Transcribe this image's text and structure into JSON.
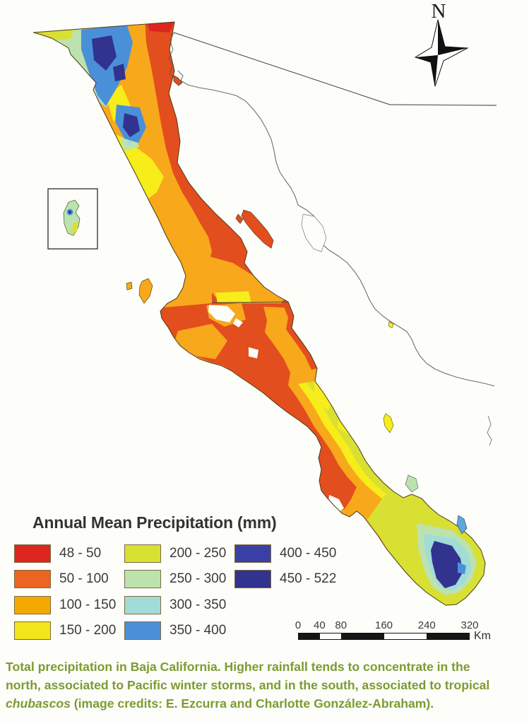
{
  "map": {
    "compass_label": "N"
  },
  "legend": {
    "title": "Annual Mean Precipitation (mm)",
    "columns": [
      [
        {
          "label": "48 - 50",
          "color": "#DD2620"
        },
        {
          "label": "50 - 100",
          "color": "#EC641F"
        },
        {
          "label": "100 - 150",
          "color": "#F6A802"
        },
        {
          "label": "150 - 200",
          "color": "#F2E51C"
        }
      ],
      [
        {
          "label": "200 - 250",
          "color": "#D7E033"
        },
        {
          "label": "250 - 300",
          "color": "#BCE2AE"
        },
        {
          "label": "300 - 350",
          "color": "#A2DCD8"
        },
        {
          "label": "350 - 400",
          "color": "#4A90D9"
        }
      ],
      [
        {
          "label": "400 - 450",
          "color": "#3A41A6"
        },
        {
          "label": "450 - 522",
          "color": "#32328F"
        }
      ]
    ]
  },
  "scalebar": {
    "ticks": [
      "0",
      "40",
      "80",
      "160",
      "240",
      "320"
    ],
    "tick_positions": [
      0,
      12.5,
      25,
      50,
      75,
      100
    ],
    "unit": "Km"
  },
  "caption": {
    "color": "#7D9B31",
    "line1": "Total precipitation in Baja California. Higher rainfall tends to concentrate in the",
    "line2": "north, associated to Pacific winter storms, and in the south, associated to tropical",
    "italic_word": "chubascos",
    "line3_rest": " (image credits: E. Ezcurra and Charlotte González-Abraham)."
  }
}
